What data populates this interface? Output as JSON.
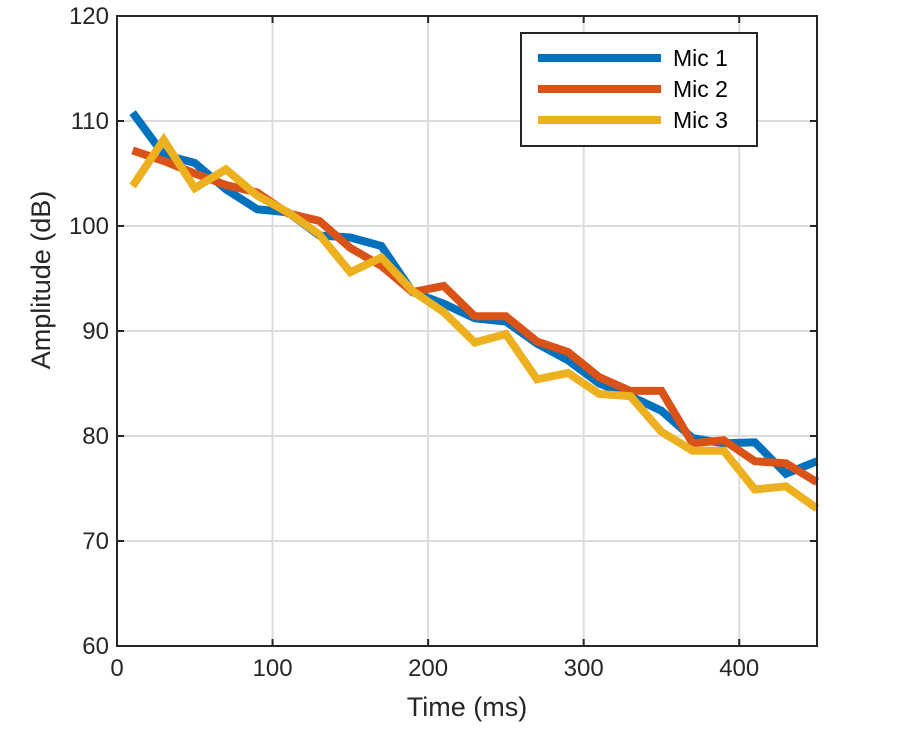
{
  "chart_data": {
    "type": "line",
    "title": "",
    "xlabel": "Time (ms)",
    "ylabel": "Amplitude (dB)",
    "xlim": [
      0,
      450
    ],
    "ylim": [
      60,
      120
    ],
    "xticks": [
      0,
      100,
      200,
      300,
      400
    ],
    "yticks": [
      60,
      70,
      80,
      90,
      100,
      110,
      120
    ],
    "grid": true,
    "legend_position": "top-right",
    "x": [
      10,
      30,
      50,
      70,
      90,
      110,
      130,
      150,
      170,
      190,
      210,
      230,
      250,
      270,
      290,
      310,
      330,
      350,
      370,
      390,
      410,
      430,
      450
    ],
    "series": [
      {
        "name": "Mic 1",
        "color": "#0072BD",
        "values": [
          110.8,
          106.8,
          106.0,
          103.5,
          101.6,
          101.3,
          99.1,
          98.9,
          98.1,
          93.7,
          92.6,
          91.2,
          90.9,
          88.8,
          87.2,
          85.0,
          83.8,
          82.4,
          79.8,
          79.3,
          79.4,
          76.4,
          77.6
        ]
      },
      {
        "name": "Mic 2",
        "color": "#D95319",
        "values": [
          107.2,
          106.2,
          105.0,
          103.9,
          103.2,
          101.2,
          100.5,
          97.9,
          96.2,
          93.7,
          94.3,
          91.4,
          91.4,
          89.0,
          88.0,
          85.6,
          84.3,
          84.3,
          79.3,
          79.6,
          77.6,
          77.4,
          75.6
        ]
      },
      {
        "name": "Mic 3",
        "color": "#EDB120",
        "values": [
          103.8,
          108.2,
          103.6,
          105.4,
          102.9,
          101.3,
          99.2,
          95.6,
          97.0,
          93.8,
          91.8,
          88.9,
          89.7,
          85.4,
          86.0,
          84.0,
          83.8,
          80.4,
          78.6,
          78.6,
          74.9,
          75.2,
          73.1
        ]
      }
    ]
  }
}
